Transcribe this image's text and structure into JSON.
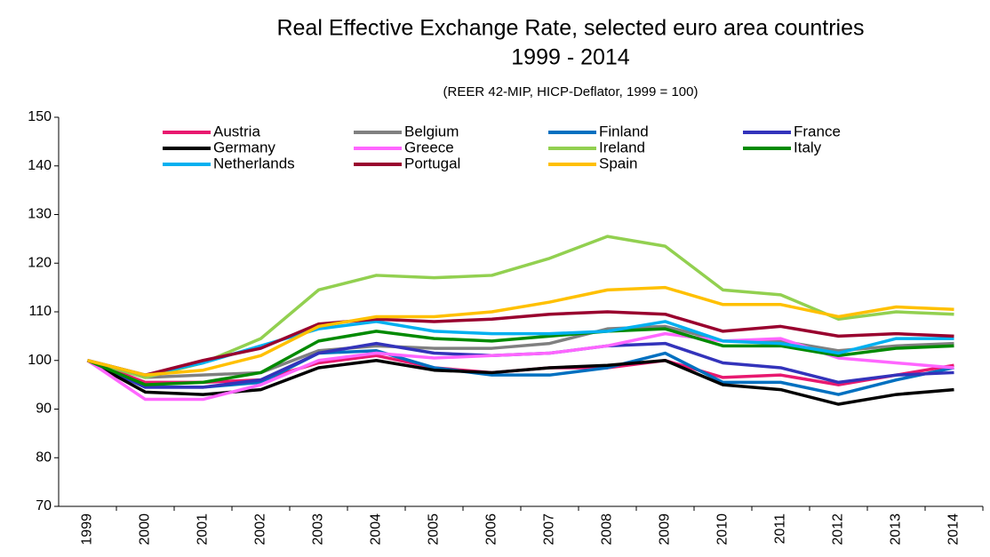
{
  "chart_data": {
    "type": "line",
    "title": "Real Effective Exchange Rate, selected euro area countries",
    "subtitle": "1999 - 2014",
    "note": "(REER 42-MIP, HICP-Deflator, 1999 = 100)",
    "categories": [
      "1999",
      "2000",
      "2001",
      "2002",
      "2003",
      "2004",
      "2005",
      "2006",
      "2007",
      "2008",
      "2009",
      "2010",
      "2011",
      "2012",
      "2013",
      "2014"
    ],
    "ylim": [
      70,
      150
    ],
    "yticks": [
      70,
      80,
      90,
      100,
      110,
      120,
      130,
      140,
      150
    ],
    "series": [
      {
        "name": "Austria",
        "color": "#e8196f",
        "values": [
          100,
          95.5,
          95.5,
          96,
          99.5,
          101,
          98.5,
          97.5,
          98.5,
          98.5,
          100,
          96.5,
          97,
          95,
          97,
          99
        ]
      },
      {
        "name": "Belgium",
        "color": "#808080",
        "values": [
          100,
          96.5,
          97,
          97.5,
          102,
          103,
          102.5,
          102.5,
          103.5,
          106.5,
          107,
          104,
          104,
          102,
          103,
          103.5
        ]
      },
      {
        "name": "Finland",
        "color": "#0070c0",
        "values": [
          100,
          94.5,
          94.5,
          95.5,
          101.5,
          102,
          98.5,
          97,
          97,
          98.5,
          101.5,
          95.5,
          95.5,
          93,
          96,
          98.5
        ]
      },
      {
        "name": "France",
        "color": "#3333bb",
        "values": [
          100,
          94.5,
          94.5,
          96,
          101.5,
          103.5,
          101.5,
          101,
          101.5,
          103,
          103.5,
          99.5,
          98.5,
          95.5,
          97,
          97.5
        ]
      },
      {
        "name": "Germany",
        "color": "#000000",
        "values": [
          100,
          93.5,
          93,
          94,
          98.5,
          100,
          98,
          97.5,
          98.5,
          99,
          100,
          95,
          94,
          91,
          93,
          94
        ]
      },
      {
        "name": "Greece",
        "color": "#ff66ff",
        "values": [
          100,
          92,
          92,
          95,
          100,
          101.5,
          100.5,
          101,
          101.5,
          103,
          105.5,
          104,
          104.5,
          100.5,
          99.5,
          98.5
        ]
      },
      {
        "name": "Ireland",
        "color": "#92d050",
        "values": [
          100,
          96.5,
          99.5,
          104.5,
          114.5,
          117.5,
          117,
          117.5,
          121,
          125.5,
          123.5,
          114.5,
          113.5,
          108.5,
          110,
          109.5
        ]
      },
      {
        "name": "Italy",
        "color": "#008a00",
        "values": [
          100,
          95,
          95.5,
          97.5,
          104,
          106,
          104.5,
          104,
          105,
          106,
          106.5,
          103,
          103,
          101,
          102.5,
          103
        ]
      },
      {
        "name": "Netherlands",
        "color": "#00b0f0",
        "values": [
          100,
          97,
          99.5,
          103,
          106.5,
          108,
          106,
          105.5,
          105.5,
          106,
          108,
          104,
          103.5,
          101.5,
          104.5,
          104.5
        ]
      },
      {
        "name": "Portugal",
        "color": "#99002e",
        "values": [
          100,
          97,
          100,
          102.5,
          107.5,
          108.5,
          108,
          108.5,
          109.5,
          110,
          109.5,
          106,
          107,
          105,
          105.5,
          105
        ]
      },
      {
        "name": "Spain",
        "color": "#ffc000",
        "values": [
          100,
          97,
          98,
          101,
          107,
          109,
          109,
          110,
          112,
          114.5,
          115,
          111.5,
          111.5,
          109,
          111,
          110.5
        ]
      }
    ]
  }
}
